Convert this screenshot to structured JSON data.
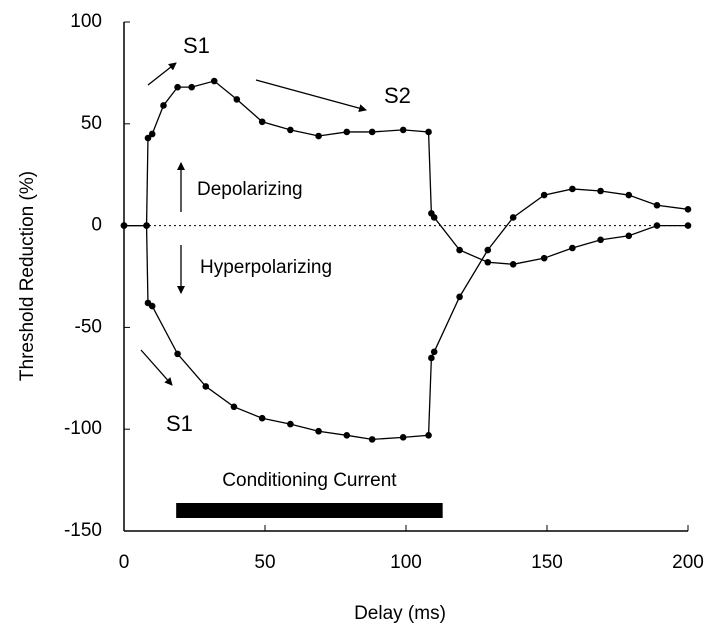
{
  "chart_data": {
    "type": "line",
    "xlabel": "Delay (ms)",
    "ylabel": "Threshold Reduction (%)",
    "xlim": [
      0,
      200
    ],
    "xticks": [
      0,
      50,
      100,
      150,
      200
    ],
    "ylim": [
      -150,
      100
    ],
    "yticks": [
      -150,
      -100,
      -50,
      0,
      50,
      100
    ],
    "zero_line": true,
    "series": [
      {
        "color": "#000000",
        "x": [
          0,
          8,
          8.5,
          10,
          14,
          19,
          24,
          32,
          40,
          49,
          59,
          69,
          79,
          88,
          99,
          108,
          109,
          110,
          119,
          129,
          138,
          149,
          159,
          169,
          179,
          189,
          200
        ],
        "values": [
          0,
          0,
          43,
          45,
          59,
          68,
          68,
          71,
          62,
          51,
          47,
          44,
          46,
          46,
          47,
          46,
          6,
          4,
          -12,
          -18,
          -19,
          -16,
          -11,
          -7,
          -5,
          0,
          0
        ]
      },
      {
        "color": "#000000",
        "x": [
          0,
          8,
          8.5,
          10,
          19,
          29,
          39,
          49,
          59,
          69,
          79,
          88,
          99,
          108,
          109,
          110,
          119,
          129,
          138,
          149,
          159,
          169,
          179,
          189,
          200
        ],
        "values": [
          0,
          0,
          -38,
          -39.5,
          -63,
          -79,
          -89,
          -94.6,
          -97.5,
          -101,
          -103,
          -105,
          -104,
          -103,
          -65,
          -62,
          -35,
          -12,
          4,
          15,
          18,
          17,
          15,
          10,
          8
        ]
      }
    ],
    "annotations": [
      "S1",
      "S2",
      "Depolarizing",
      "Hyperpolarizing",
      "S1"
    ],
    "conditioning_current": {
      "label": "Conditioning Current",
      "x": [
        18.5,
        113
      ]
    }
  }
}
